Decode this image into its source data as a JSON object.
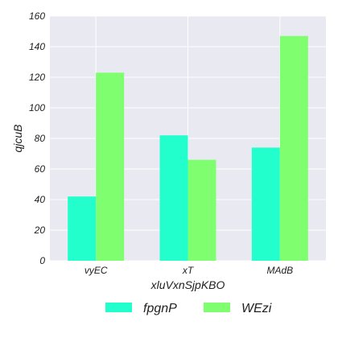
{
  "chart_data": {
    "type": "bar",
    "categories": [
      "vyEC",
      "xT",
      "MAdB"
    ],
    "series": [
      {
        "name": "fpgnP",
        "values": [
          42,
          82,
          74
        ],
        "color": "#22ffcc"
      },
      {
        "name": "WEzi",
        "values": [
          123,
          66,
          147
        ],
        "color": "#7fff6f"
      }
    ],
    "xlabel": "xluVxnSjpKBO",
    "ylabel": "qjcuB",
    "ylim": [
      0,
      160
    ],
    "yticks": [
      0,
      20,
      40,
      60,
      80,
      100,
      120,
      140,
      160
    ],
    "grid": true,
    "legend_position": "bottom-center",
    "background_color": "#e9e9f2",
    "grid_color": "#ffffff"
  }
}
